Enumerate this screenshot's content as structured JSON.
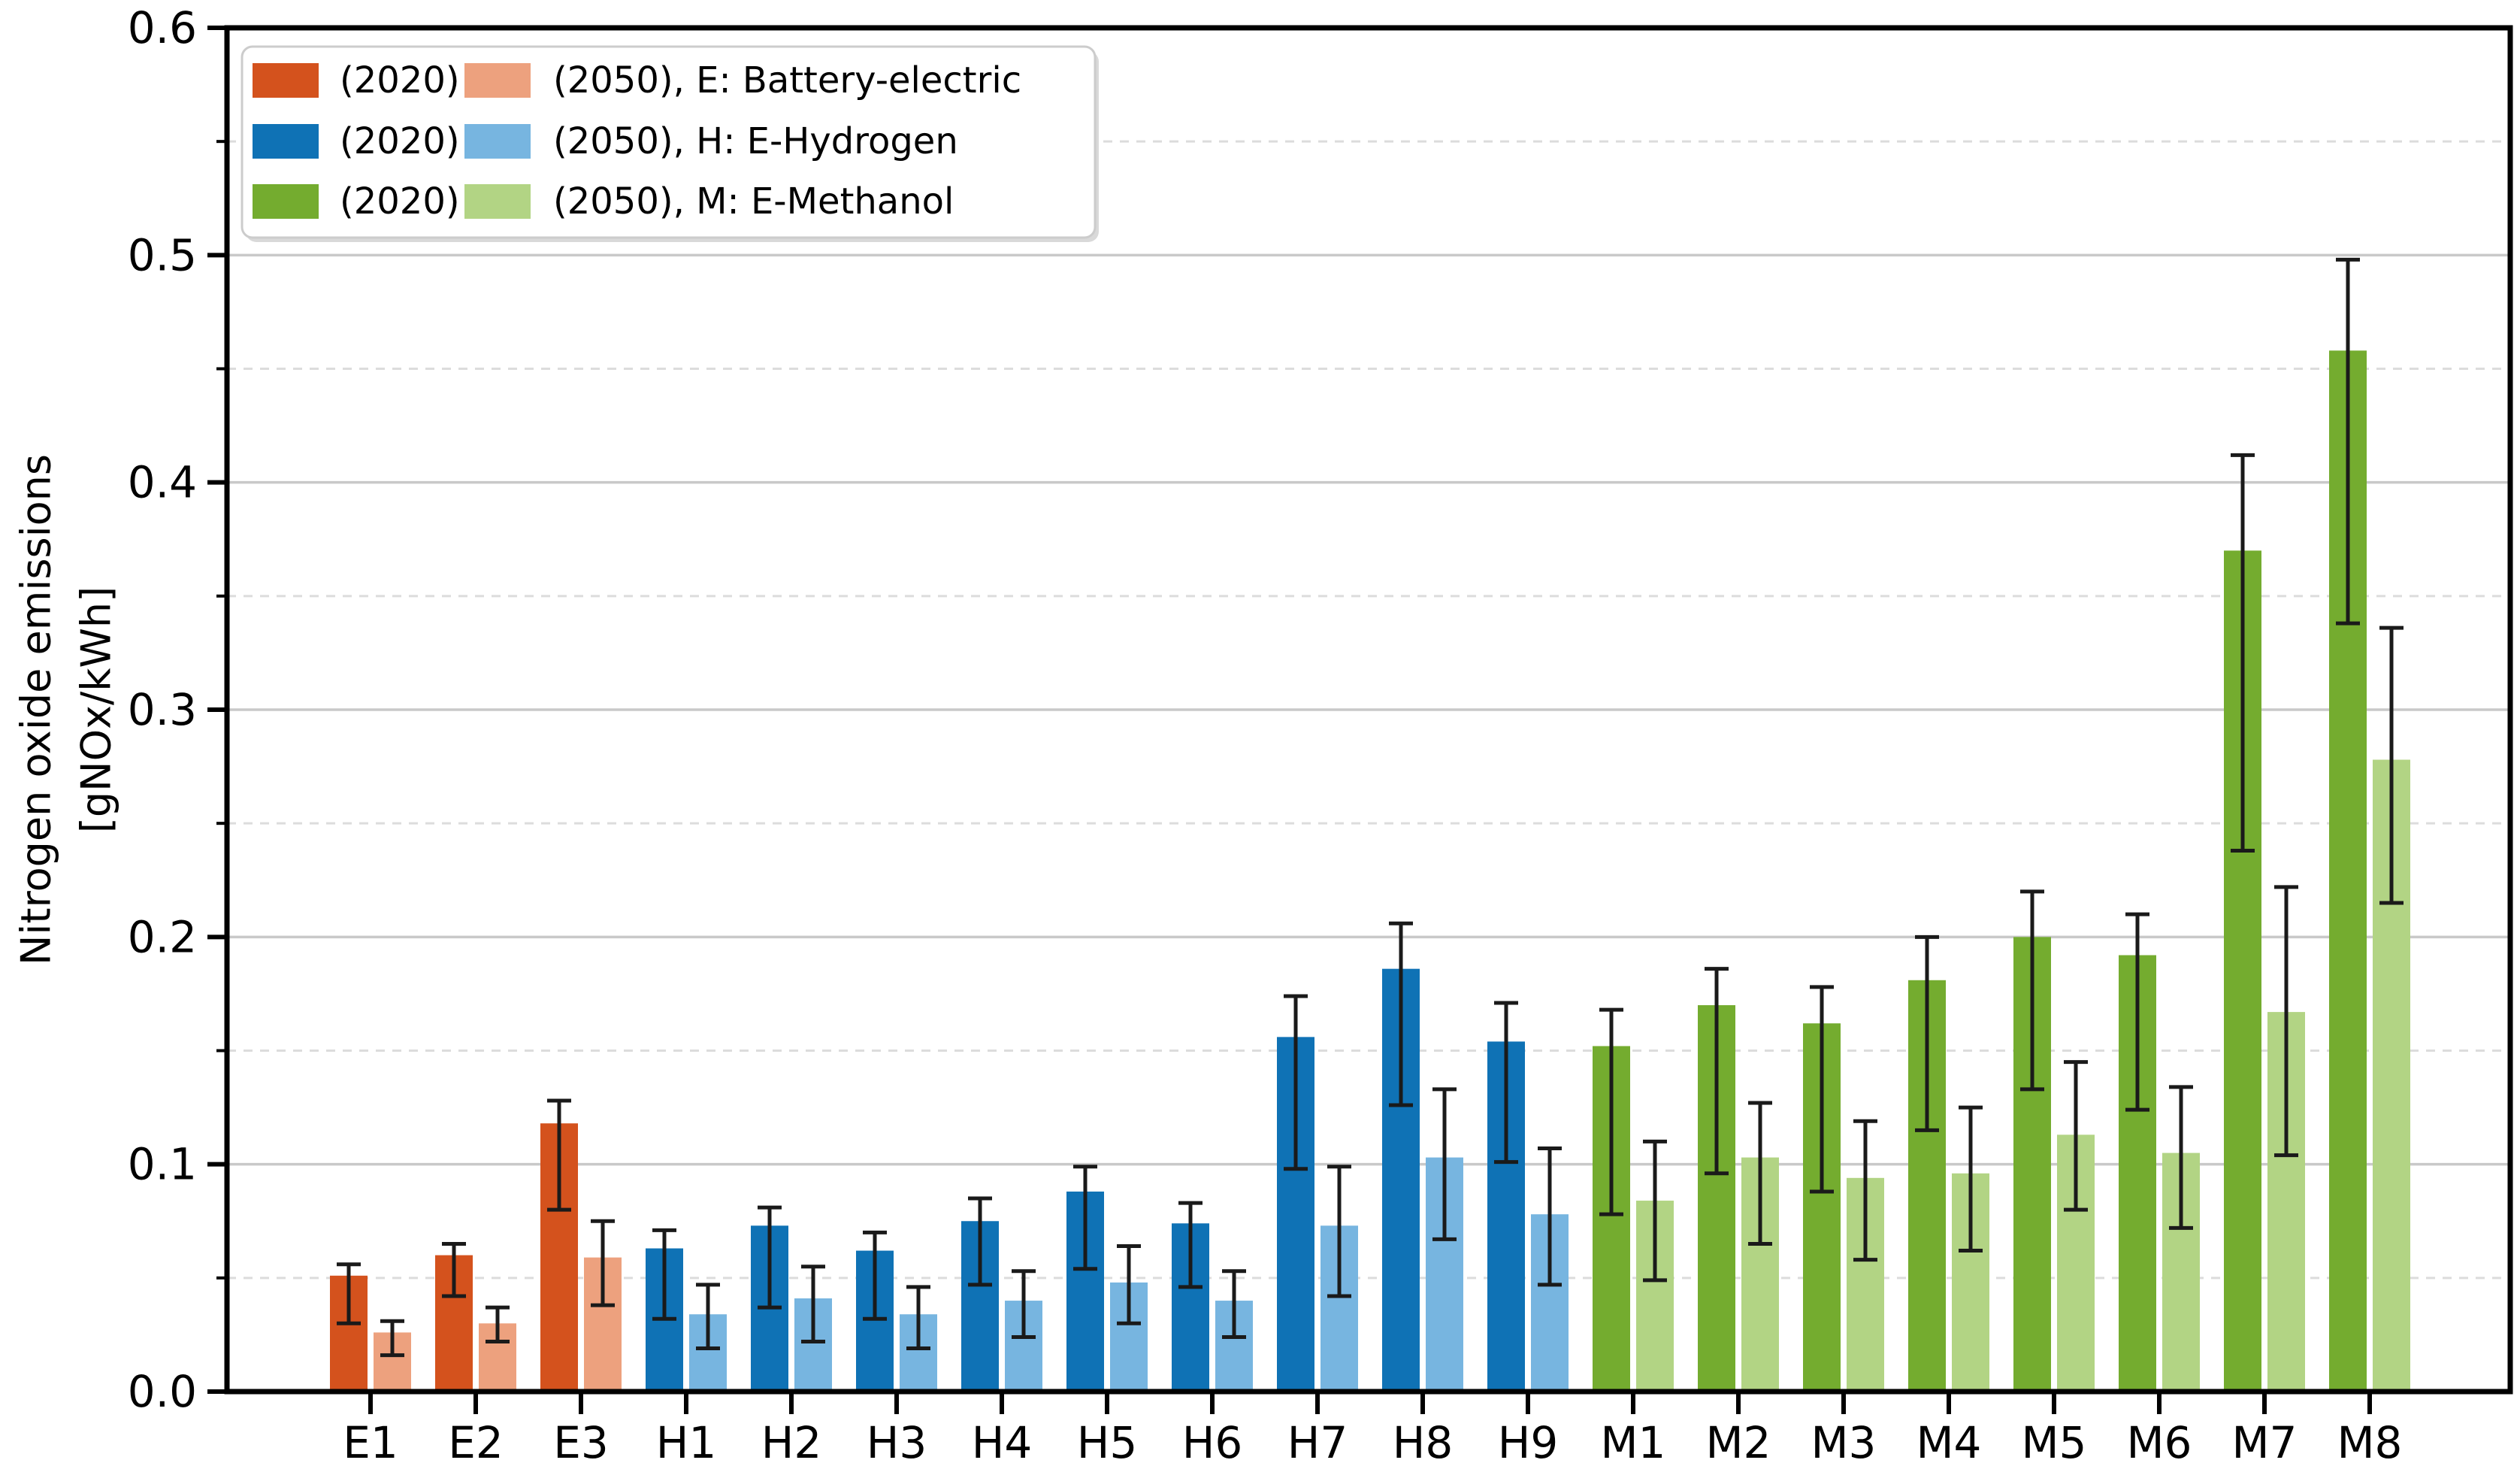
{
  "chart_data": {
    "type": "bar",
    "title": "",
    "ylabel_lines": [
      "Nitrogen oxide emissions",
      "[gNOx/kWh]"
    ],
    "xlabel": "",
    "ylim": [
      0,
      0.6
    ],
    "ytick_major_step": 0.1,
    "ytick_minor_step": 0.05,
    "ytick_decimals": 1,
    "grid": {
      "major": "solid",
      "minor": "dashed",
      "major_color": "#c9c9c9",
      "minor_color": "#dcdcdc"
    },
    "legend_position": "upper left",
    "legend": {
      "rows": [
        {
          "label_2020": "(2020)",
          "label_2050": "(2050), E: Battery-electric",
          "color_2020": "#d4521d",
          "color_2050": "#eda17e"
        },
        {
          "label_2020": "(2020)",
          "label_2050": "(2050), H: E-Hydrogen",
          "color_2020": "#0f72b5",
          "color_2050": "#77b5e0"
        },
        {
          "label_2020": "(2020)",
          "label_2050": "(2050), M: E-Methanol",
          "color_2020": "#74ac2f",
          "color_2050": "#b2d484"
        }
      ]
    },
    "colors": {
      "E": {
        "y2020": "#d4521d",
        "y2050": "#eda17e"
      },
      "H": {
        "y2020": "#0f72b5",
        "y2050": "#77b5e0"
      },
      "M": {
        "y2020": "#74ac2f",
        "y2050": "#b2d484"
      },
      "errorbar": "#1a1a1a",
      "spine": "#000000"
    },
    "categories": [
      "E1",
      "E2",
      "E3",
      "H1",
      "H2",
      "H3",
      "H4",
      "H5",
      "H6",
      "H7",
      "H8",
      "H9",
      "M1",
      "M2",
      "M3",
      "M4",
      "M5",
      "M6",
      "M7",
      "M8"
    ],
    "series_names": [
      "(2020)",
      "(2050)"
    ],
    "groups": [
      {
        "name": "E1",
        "fuel": "E",
        "v2020": 0.051,
        "lo2020": 0.03,
        "hi2020": 0.056,
        "v2050": 0.026,
        "lo2050": 0.016,
        "hi2050": 0.031
      },
      {
        "name": "E2",
        "fuel": "E",
        "v2020": 0.06,
        "lo2020": 0.042,
        "hi2020": 0.065,
        "v2050": 0.03,
        "lo2050": 0.022,
        "hi2050": 0.037
      },
      {
        "name": "E3",
        "fuel": "E",
        "v2020": 0.118,
        "lo2020": 0.08,
        "hi2020": 0.128,
        "v2050": 0.059,
        "lo2050": 0.038,
        "hi2050": 0.075
      },
      {
        "name": "H1",
        "fuel": "H",
        "v2020": 0.063,
        "lo2020": 0.032,
        "hi2020": 0.071,
        "v2050": 0.034,
        "lo2050": 0.019,
        "hi2050": 0.047
      },
      {
        "name": "H2",
        "fuel": "H",
        "v2020": 0.073,
        "lo2020": 0.037,
        "hi2020": 0.081,
        "v2050": 0.041,
        "lo2050": 0.022,
        "hi2050": 0.055
      },
      {
        "name": "H3",
        "fuel": "H",
        "v2020": 0.062,
        "lo2020": 0.032,
        "hi2020": 0.07,
        "v2050": 0.034,
        "lo2050": 0.019,
        "hi2050": 0.046
      },
      {
        "name": "H4",
        "fuel": "H",
        "v2020": 0.075,
        "lo2020": 0.047,
        "hi2020": 0.085,
        "v2050": 0.04,
        "lo2050": 0.024,
        "hi2050": 0.053
      },
      {
        "name": "H5",
        "fuel": "H",
        "v2020": 0.088,
        "lo2020": 0.054,
        "hi2020": 0.099,
        "v2050": 0.048,
        "lo2050": 0.03,
        "hi2050": 0.064
      },
      {
        "name": "H6",
        "fuel": "H",
        "v2020": 0.074,
        "lo2020": 0.046,
        "hi2020": 0.083,
        "v2050": 0.04,
        "lo2050": 0.024,
        "hi2050": 0.053
      },
      {
        "name": "H7",
        "fuel": "H",
        "v2020": 0.156,
        "lo2020": 0.098,
        "hi2020": 0.174,
        "v2050": 0.073,
        "lo2050": 0.042,
        "hi2050": 0.099
      },
      {
        "name": "H8",
        "fuel": "H",
        "v2020": 0.186,
        "lo2020": 0.126,
        "hi2020": 0.206,
        "v2050": 0.103,
        "lo2050": 0.067,
        "hi2050": 0.133
      },
      {
        "name": "H9",
        "fuel": "H",
        "v2020": 0.154,
        "lo2020": 0.101,
        "hi2020": 0.171,
        "v2050": 0.078,
        "lo2050": 0.047,
        "hi2050": 0.107
      },
      {
        "name": "M1",
        "fuel": "M",
        "v2020": 0.152,
        "lo2020": 0.078,
        "hi2020": 0.168,
        "v2050": 0.084,
        "lo2050": 0.049,
        "hi2050": 0.11
      },
      {
        "name": "M2",
        "fuel": "M",
        "v2020": 0.17,
        "lo2020": 0.096,
        "hi2020": 0.186,
        "v2050": 0.103,
        "lo2050": 0.065,
        "hi2050": 0.127
      },
      {
        "name": "M3",
        "fuel": "M",
        "v2020": 0.162,
        "lo2020": 0.088,
        "hi2020": 0.178,
        "v2050": 0.094,
        "lo2050": 0.058,
        "hi2050": 0.119
      },
      {
        "name": "M4",
        "fuel": "M",
        "v2020": 0.181,
        "lo2020": 0.115,
        "hi2020": 0.2,
        "v2050": 0.096,
        "lo2050": 0.062,
        "hi2050": 0.125
      },
      {
        "name": "M5",
        "fuel": "M",
        "v2020": 0.2,
        "lo2020": 0.133,
        "hi2020": 0.22,
        "v2050": 0.113,
        "lo2050": 0.08,
        "hi2050": 0.145
      },
      {
        "name": "M6",
        "fuel": "M",
        "v2020": 0.192,
        "lo2020": 0.124,
        "hi2020": 0.21,
        "v2050": 0.105,
        "lo2050": 0.072,
        "hi2050": 0.134
      },
      {
        "name": "M7",
        "fuel": "M",
        "v2020": 0.37,
        "lo2020": 0.238,
        "hi2020": 0.412,
        "v2050": 0.167,
        "lo2050": 0.104,
        "hi2050": 0.222
      },
      {
        "name": "M8",
        "fuel": "M",
        "v2020": 0.458,
        "lo2020": 0.338,
        "hi2020": 0.498,
        "v2050": 0.278,
        "lo2050": 0.215,
        "hi2050": 0.336
      }
    ]
  }
}
